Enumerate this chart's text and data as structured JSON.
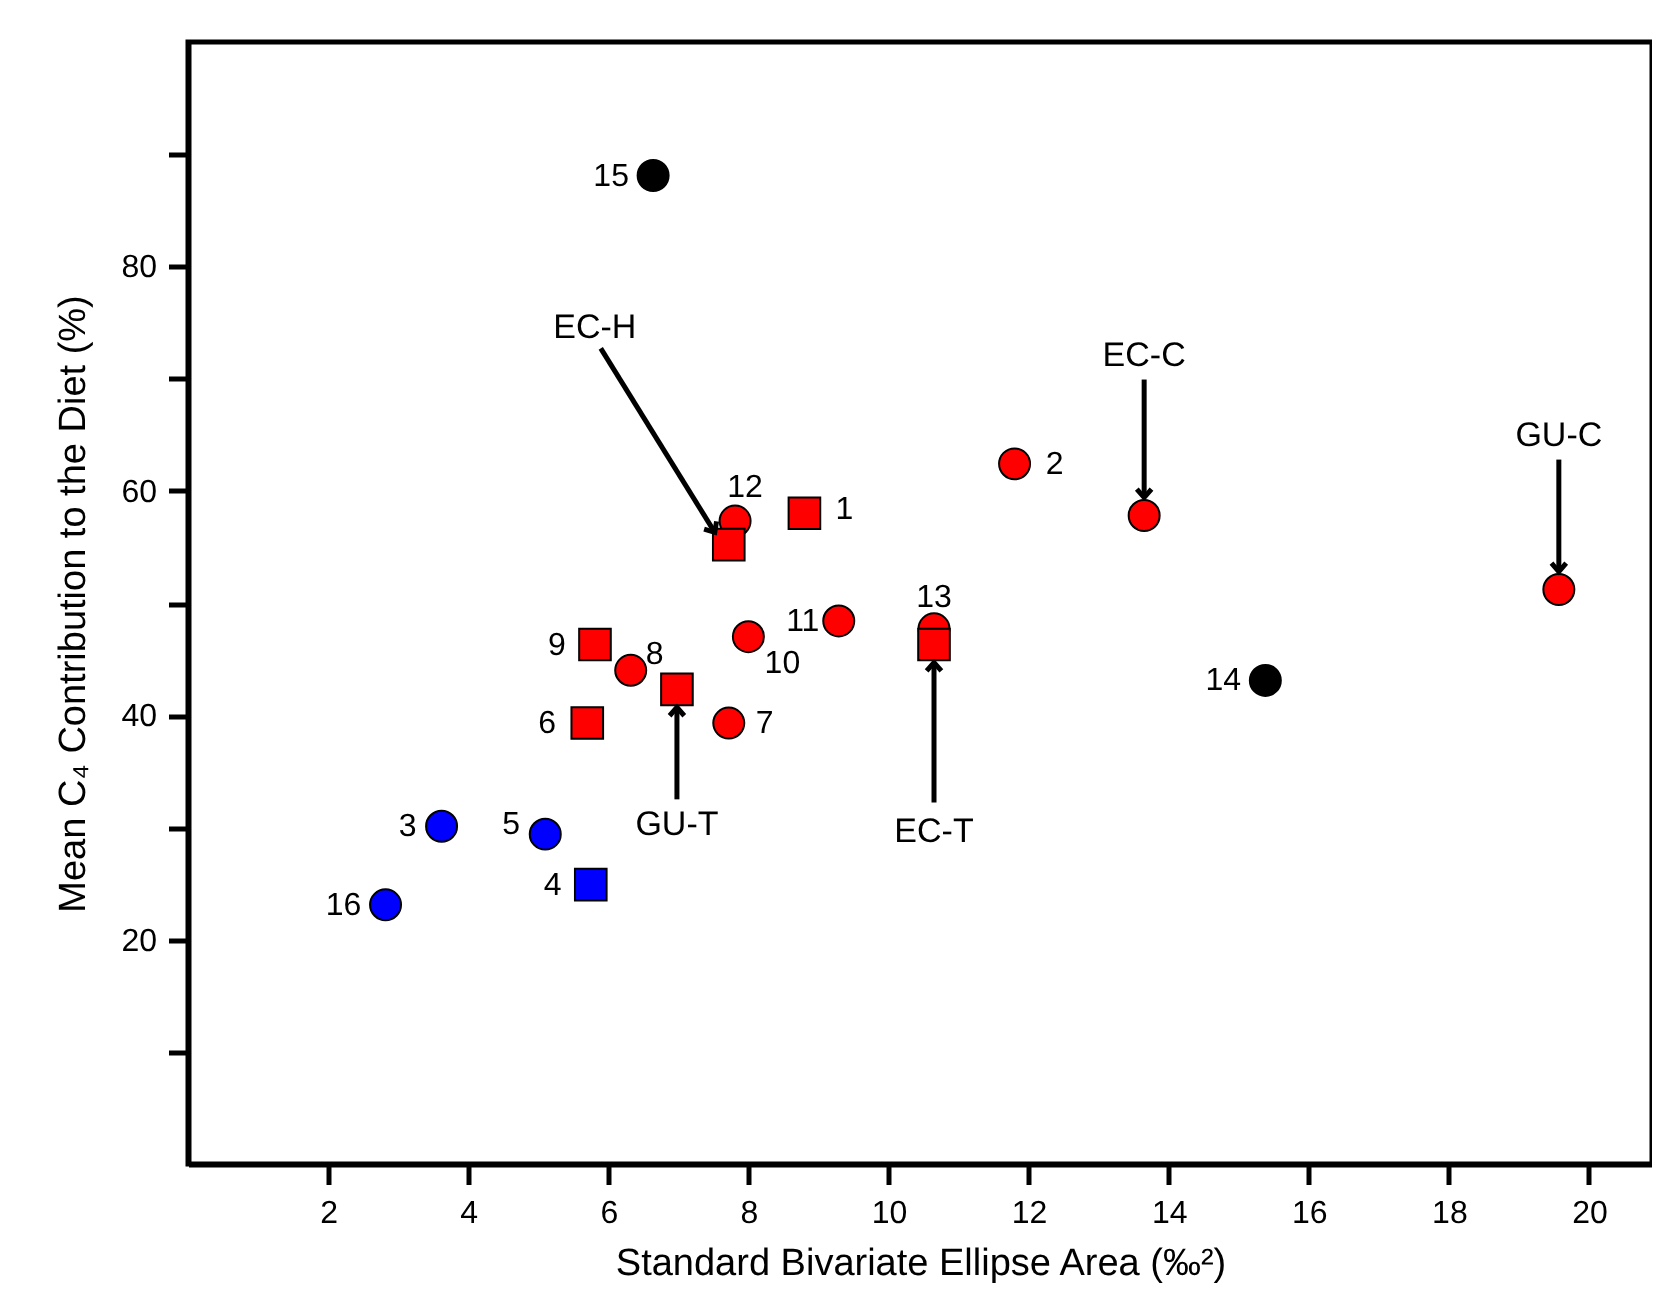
{
  "chart_data": {
    "type": "scatter",
    "xlabel": "Standard Bivariate Ellipse Area (‰²)",
    "ylabel": "Mean C₄ Contribution to the Diet (%)",
    "xlim": [
      0,
      20.9
    ],
    "xticks": [
      2,
      4,
      6,
      8,
      10,
      12,
      14,
      16,
      18,
      20
    ],
    "ylim": [
      0,
      100
    ],
    "yticks": [
      {
        "value": 10,
        "label": null
      },
      20,
      {
        "value": 30,
        "label": null
      },
      40,
      {
        "value": 50,
        "label": null
      },
      60,
      {
        "value": 70,
        "label": null
      },
      80,
      {
        "value": 90,
        "label": null
      }
    ],
    "grid": false,
    "series": [
      {
        "marker": "circle",
        "color": "#ff0000",
        "x": [
          7.81,
          11.8,
          13.65,
          19.57,
          10.65,
          9.29,
          8.0,
          6.32,
          7.72
        ],
        "values": [
          57.3,
          62.4,
          57.8,
          51.2,
          47.7,
          48.4,
          47.0,
          44.0,
          39.3
        ]
      },
      {
        "marker": "square",
        "color": "#ff0000",
        "x": [
          7.72,
          8.8,
          10.65,
          5.81,
          6.98,
          5.7
        ],
        "values": [
          55.2,
          58.0,
          46.3,
          46.3,
          42.3,
          39.3
        ]
      },
      {
        "marker": "circle",
        "color": "#0000ff",
        "x": [
          3.62,
          5.1,
          2.82
        ],
        "values": [
          30.1,
          29.4,
          23.1
        ]
      },
      {
        "marker": "square",
        "color": "#0000ff",
        "x": [
          5.75
        ],
        "values": [
          24.9
        ]
      },
      {
        "marker": "circle",
        "color": "#000000",
        "x": [
          6.64,
          15.38
        ],
        "values": [
          88.1,
          43.1
        ]
      }
    ],
    "annotations": [
      {
        "text": "15",
        "x": 6.64,
        "y": 88.1
      },
      {
        "text": "12",
        "x": 7.81,
        "y": 57.3
      },
      {
        "text": "1",
        "x": 8.8,
        "y": 58.0
      },
      {
        "text": "2",
        "x": 11.8,
        "y": 62.4
      },
      {
        "text": "13",
        "x": 10.65,
        "y": 47.7
      },
      {
        "text": "11",
        "x": 9.29,
        "y": 48.4
      },
      {
        "text": "10",
        "x": 8.0,
        "y": 47.0
      },
      {
        "text": "8",
        "x": 6.32,
        "y": 44.0
      },
      {
        "text": "9",
        "x": 5.81,
        "y": 46.3
      },
      {
        "text": "6",
        "x": 5.7,
        "y": 39.3
      },
      {
        "text": "7",
        "x": 7.72,
        "y": 39.3
      },
      {
        "text": "14",
        "x": 15.38,
        "y": 43.1
      },
      {
        "text": "3",
        "x": 3.62,
        "y": 30.1
      },
      {
        "text": "5",
        "x": 5.1,
        "y": 29.4
      },
      {
        "text": "4",
        "x": 5.75,
        "y": 24.9
      },
      {
        "text": "16",
        "x": 2.82,
        "y": 23.1
      },
      {
        "text": "EC-H",
        "x": 7.52,
        "y": 56.3
      },
      {
        "text": "EC-C",
        "x": 13.65,
        "y": 59.4
      },
      {
        "text": "GU-C",
        "x": 19.57,
        "y": 52.8
      },
      {
        "text": "GU-T",
        "x": 6.98,
        "y": 40.7
      },
      {
        "text": "EC-T",
        "x": 10.65,
        "y": 44.7
      }
    ]
  }
}
